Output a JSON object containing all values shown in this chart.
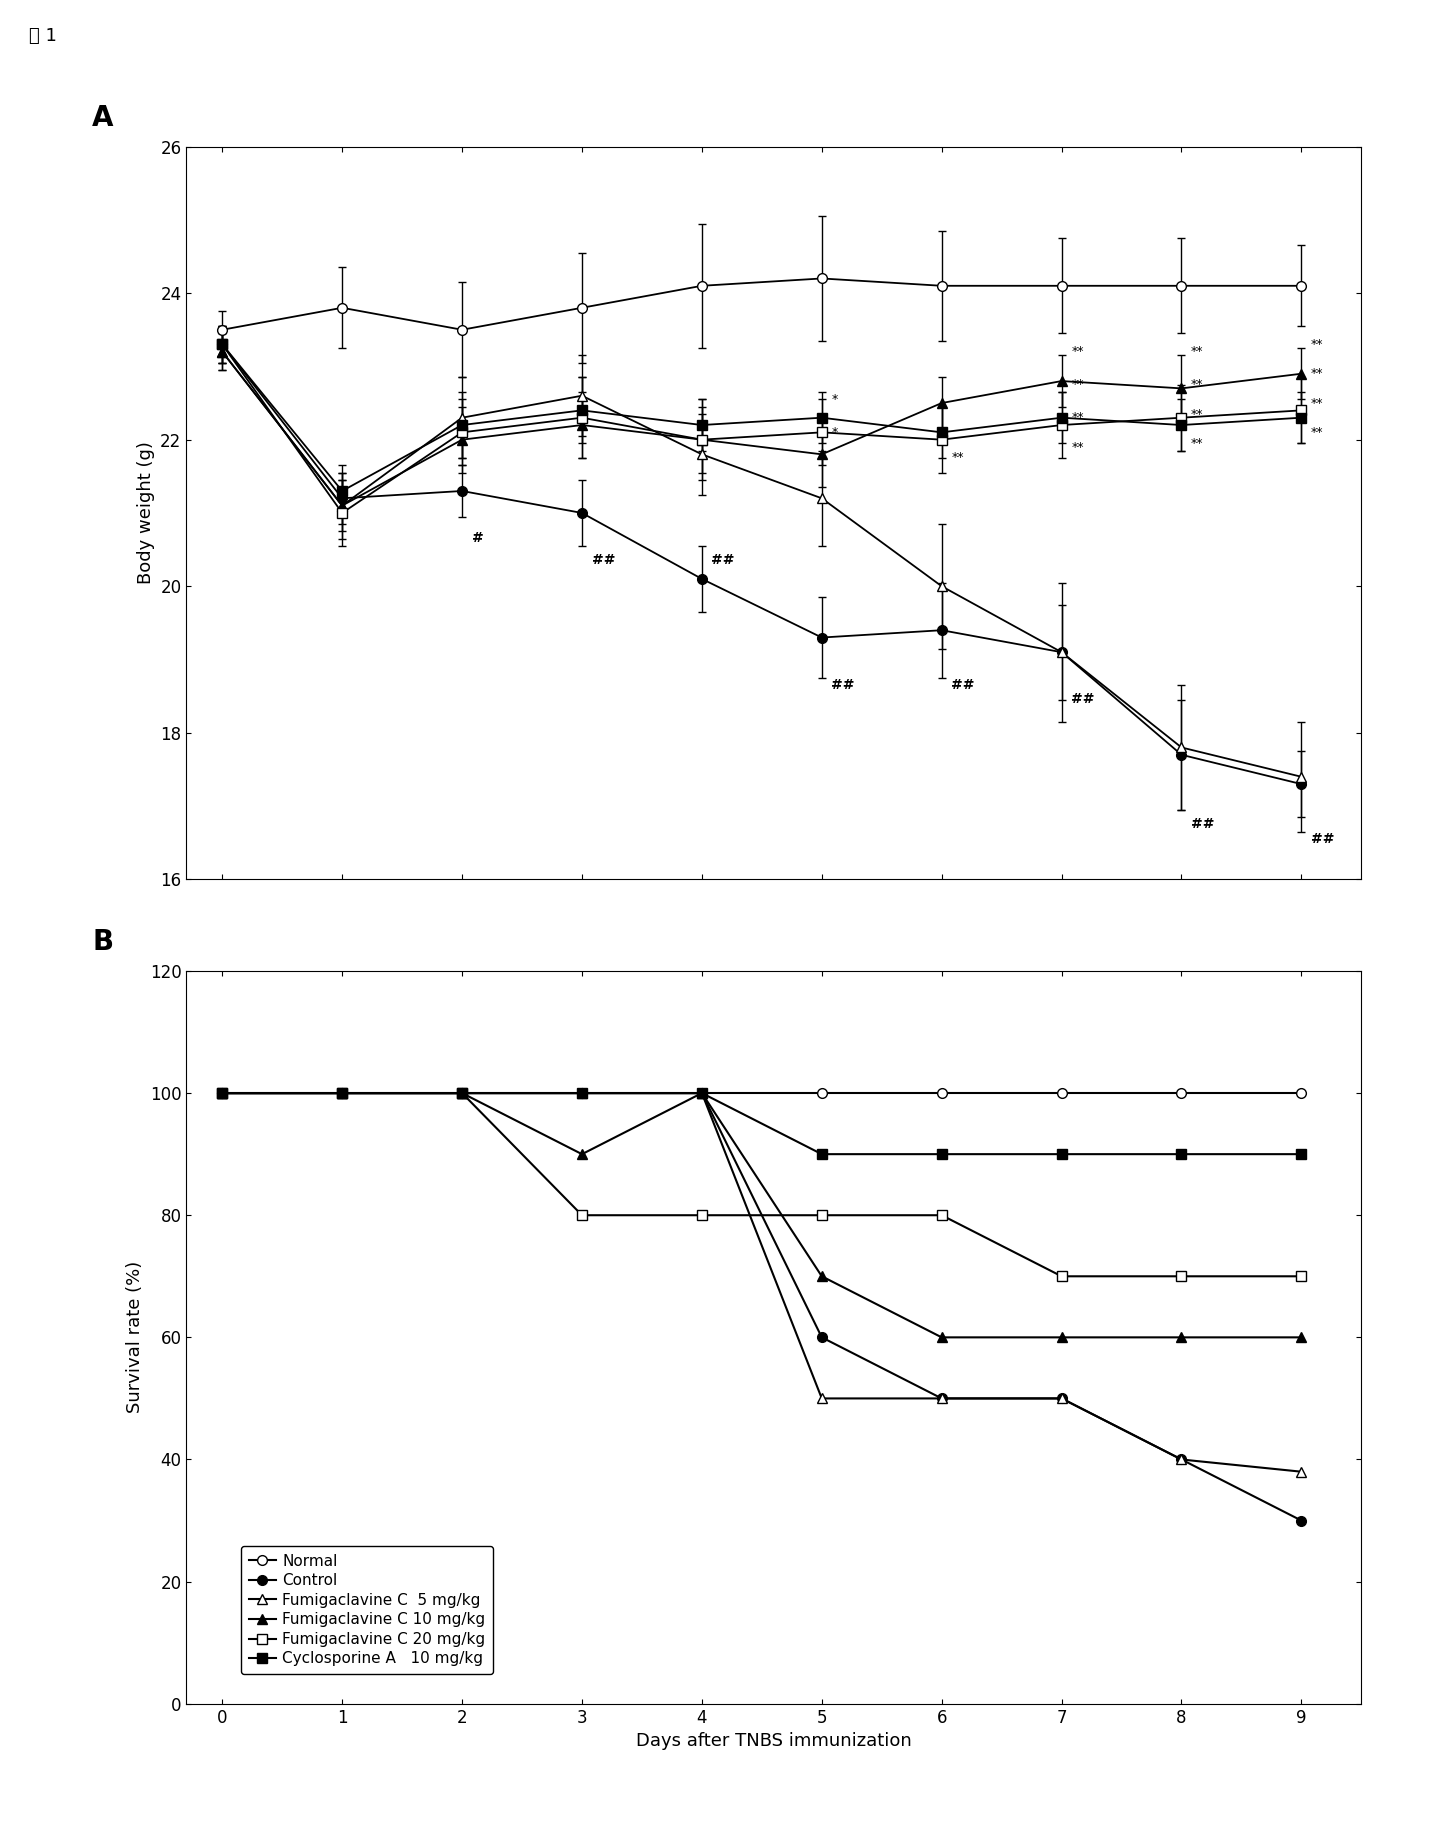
{
  "panel_A": {
    "title": "A",
    "ylabel": "Body weight (g)",
    "ylim": [
      16,
      26
    ],
    "yticks": [
      16,
      18,
      20,
      22,
      24,
      26
    ],
    "xlim": [
      -0.3,
      9.5
    ],
    "xticks": [
      0,
      1,
      2,
      3,
      4,
      5,
      6,
      7,
      8,
      9
    ],
    "days": [
      0,
      1,
      2,
      3,
      4,
      5,
      6,
      7,
      8,
      9
    ],
    "series": {
      "Normal": {
        "mean": [
          23.5,
          23.8,
          23.5,
          23.8,
          24.1,
          24.2,
          24.1,
          24.1,
          24.1,
          24.1
        ],
        "err": [
          0.25,
          0.55,
          0.65,
          0.75,
          0.85,
          0.85,
          0.75,
          0.65,
          0.65,
          0.55
        ],
        "marker": "o",
        "fillstyle": "none"
      },
      "Control": {
        "mean": [
          23.3,
          21.2,
          21.3,
          21.0,
          20.1,
          19.3,
          19.4,
          19.1,
          17.7,
          17.3
        ],
        "err": [
          0.25,
          0.35,
          0.35,
          0.45,
          0.45,
          0.55,
          0.65,
          0.65,
          0.75,
          0.45
        ],
        "marker": "o",
        "fillstyle": "full"
      },
      "Fumigaclavine_C_5": {
        "mean": [
          23.2,
          21.1,
          22.3,
          22.6,
          21.8,
          21.2,
          20.0,
          19.1,
          17.8,
          17.4
        ],
        "err": [
          0.25,
          0.45,
          0.55,
          0.55,
          0.55,
          0.65,
          0.85,
          0.95,
          0.85,
          0.75
        ],
        "marker": "^",
        "fillstyle": "none"
      },
      "Fumigaclavine_C_10": {
        "mean": [
          23.2,
          21.1,
          22.0,
          22.2,
          22.0,
          21.8,
          22.5,
          22.8,
          22.7,
          22.9
        ],
        "err": [
          0.25,
          0.35,
          0.45,
          0.45,
          0.45,
          0.45,
          0.35,
          0.35,
          0.45,
          0.35
        ],
        "marker": "^",
        "fillstyle": "full"
      },
      "Fumigaclavine_C_20": {
        "mean": [
          23.3,
          21.0,
          22.1,
          22.3,
          22.0,
          22.1,
          22.0,
          22.2,
          22.3,
          22.4
        ],
        "err": [
          0.25,
          0.45,
          0.45,
          0.55,
          0.55,
          0.45,
          0.45,
          0.45,
          0.45,
          0.45
        ],
        "marker": "s",
        "fillstyle": "none"
      },
      "Cyclosporine_A_10": {
        "mean": [
          23.3,
          21.3,
          22.2,
          22.4,
          22.2,
          22.3,
          22.1,
          22.3,
          22.2,
          22.3
        ],
        "err": [
          0.25,
          0.35,
          0.45,
          0.45,
          0.35,
          0.35,
          0.35,
          0.35,
          0.35,
          0.35
        ],
        "marker": "s",
        "fillstyle": "full"
      }
    },
    "hash_anns": [
      [
        2,
        20.75,
        "#"
      ],
      [
        3,
        20.45,
        "##"
      ],
      [
        4,
        20.45,
        "##"
      ],
      [
        5,
        18.75,
        "##"
      ],
      [
        6,
        18.75,
        "##"
      ],
      [
        7,
        18.55,
        "##"
      ],
      [
        8,
        16.85,
        "##"
      ],
      [
        9,
        16.65,
        "##"
      ]
    ],
    "star_anns": [
      [
        5,
        22.55,
        "*"
      ],
      [
        5,
        22.1,
        "*"
      ],
      [
        6,
        21.75,
        "**"
      ],
      [
        7,
        23.2,
        "**"
      ],
      [
        7,
        22.75,
        "**"
      ],
      [
        7,
        22.3,
        "**"
      ],
      [
        7,
        21.9,
        "**"
      ],
      [
        8,
        23.2,
        "**"
      ],
      [
        8,
        22.75,
        "**"
      ],
      [
        8,
        22.35,
        "**"
      ],
      [
        8,
        21.95,
        "**"
      ],
      [
        9,
        23.3,
        "**"
      ],
      [
        9,
        22.9,
        "**"
      ],
      [
        9,
        22.5,
        "**"
      ],
      [
        9,
        22.1,
        "**"
      ]
    ]
  },
  "panel_B": {
    "title": "B",
    "ylabel": "Survival rate (%)",
    "ylim": [
      0,
      120
    ],
    "yticks": [
      0,
      20,
      40,
      60,
      80,
      100,
      120
    ],
    "xlim": [
      -0.3,
      9.5
    ],
    "xticks": [
      0,
      1,
      2,
      3,
      4,
      5,
      6,
      7,
      8,
      9
    ],
    "days": [
      0,
      1,
      2,
      3,
      4,
      5,
      6,
      7,
      8,
      9
    ],
    "series": {
      "Normal": {
        "values": [
          100,
          100,
          100,
          100,
          100,
          100,
          100,
          100,
          100,
          100
        ],
        "marker": "o",
        "fillstyle": "none"
      },
      "Control": {
        "values": [
          100,
          100,
          100,
          100,
          100,
          60,
          50,
          50,
          40,
          30
        ],
        "marker": "o",
        "fillstyle": "full"
      },
      "Fumigaclavine_C_5": {
        "values": [
          100,
          100,
          100,
          100,
          100,
          50,
          50,
          50,
          40,
          38
        ],
        "marker": "^",
        "fillstyle": "none"
      },
      "Fumigaclavine_C_10": {
        "values": [
          100,
          100,
          100,
          90,
          100,
          70,
          60,
          60,
          60,
          60
        ],
        "marker": "^",
        "fillstyle": "full"
      },
      "Fumigaclavine_C_20": {
        "values": [
          100,
          100,
          100,
          80,
          80,
          80,
          80,
          70,
          70,
          70
        ],
        "marker": "s",
        "fillstyle": "none"
      },
      "Cyclosporine_A_10": {
        "values": [
          100,
          100,
          100,
          100,
          100,
          90,
          90,
          90,
          90,
          90
        ],
        "marker": "s",
        "fillstyle": "full"
      }
    },
    "legend": [
      {
        "label": "Normal",
        "marker": "o",
        "fillstyle": "none"
      },
      {
        "label": "Control",
        "marker": "o",
        "fillstyle": "full"
      },
      {
        "label": "Fumigaclavine C  5 mg/kg",
        "marker": "^",
        "fillstyle": "none"
      },
      {
        "label": "Fumigaclavine C 10 mg/kg",
        "marker": "^",
        "fillstyle": "full"
      },
      {
        "label": "Fumigaclavine C 20 mg/kg",
        "marker": "s",
        "fillstyle": "none"
      },
      {
        "label": "Cyclosporine A   10 mg/kg",
        "marker": "s",
        "fillstyle": "full"
      }
    ]
  },
  "xlabel": "Days after TNBS immunization",
  "figure_label": "図 1",
  "background_color": "#ffffff"
}
